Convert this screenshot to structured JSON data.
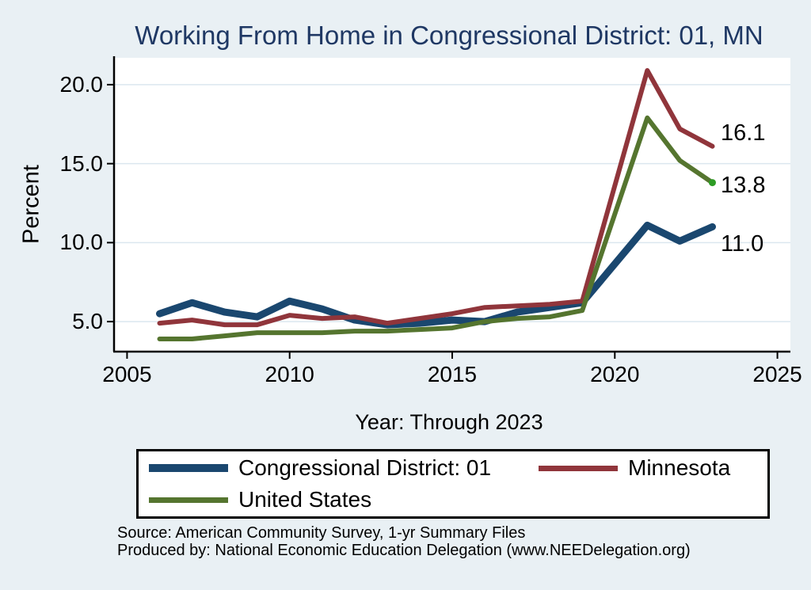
{
  "figure": {
    "background": "#e9f0f4",
    "plot_background": "#ffffff",
    "grid_color": "#dbe7ef",
    "axis_color": "#000000",
    "title_color": "#1f3864"
  },
  "chart_data": {
    "type": "line",
    "title": "Working From Home in Congressional District: 01, MN",
    "xlabel": "Year: Through 2023",
    "ylabel": "Percent",
    "x": [
      2006,
      2007,
      2008,
      2009,
      2010,
      2011,
      2012,
      2013,
      2014,
      2015,
      2016,
      2017,
      2018,
      2019,
      2021,
      2022,
      2023
    ],
    "series": [
      {
        "name": "Congressional District: 01",
        "color": "#1a476f",
        "line_width": 9,
        "legend_thickness": 10,
        "values": [
          5.5,
          6.2,
          5.6,
          5.3,
          6.3,
          5.8,
          5.1,
          4.8,
          4.9,
          5.1,
          5.0,
          5.6,
          5.9,
          6.2,
          11.1,
          10.1,
          11.0
        ],
        "end_label": "11.0",
        "end_label_dy": 22
      },
      {
        "name": "Minnesota",
        "color": "#90353b",
        "line_width": 6,
        "legend_thickness": 7,
        "values": [
          4.9,
          5.1,
          4.8,
          4.8,
          5.4,
          5.2,
          5.3,
          4.9,
          5.2,
          5.5,
          5.9,
          6.0,
          6.1,
          6.3,
          20.9,
          17.2,
          16.1
        ],
        "end_label": "16.1",
        "end_label_dy": -17
      },
      {
        "name": "United States",
        "color": "#55752f",
        "line_width": 6,
        "legend_thickness": 7,
        "values": [
          3.9,
          3.9,
          4.1,
          4.3,
          4.3,
          4.3,
          4.4,
          4.4,
          4.5,
          4.6,
          5.0,
          5.2,
          5.3,
          5.7,
          17.9,
          15.2,
          13.8
        ],
        "end_label": "13.8",
        "end_label_dy": 3,
        "end_marker_color": "#2e9c25"
      }
    ],
    "x_ticks": [
      2005,
      2010,
      2015,
      2020,
      2025
    ],
    "x_tick_labels": [
      "2005",
      "2010",
      "2015",
      "2020",
      "2025"
    ],
    "y_ticks": [
      5,
      10,
      15,
      20
    ],
    "y_tick_labels": [
      "5.0",
      "10.0",
      "15.0",
      "20.0"
    ],
    "xlim": [
      2004.6,
      2025.4
    ],
    "ylim": [
      3.1,
      21.7
    ],
    "grid": true,
    "legend_position": "bottom"
  },
  "notes": {
    "source": "Source: American Community Survey, 1-yr Summary Files",
    "produced_by": "Produced by: National Economic Education Delegation (www.NEEDelegation.org)"
  }
}
